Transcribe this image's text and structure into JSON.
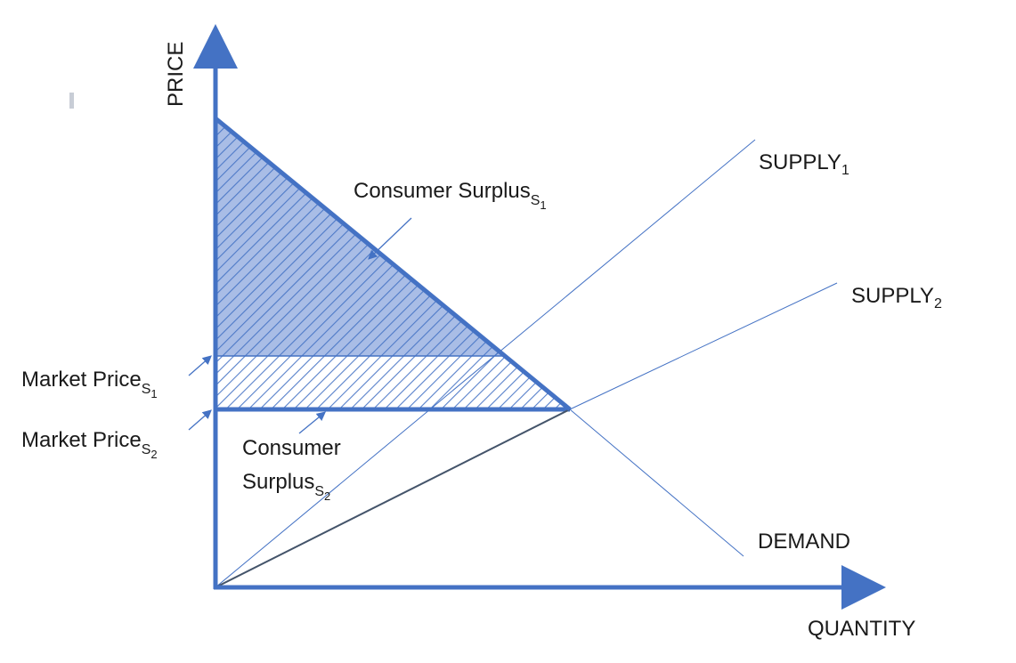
{
  "axes": {
    "y_label": "PRICE",
    "x_label": "QUANTITY"
  },
  "curves": {
    "supply1": {
      "label": "SUPPLY",
      "subscript": "1"
    },
    "supply2": {
      "label": "SUPPLY",
      "subscript": "2"
    },
    "demand": {
      "label": "DEMAND"
    }
  },
  "annotations": {
    "consumer_surplus_s1": {
      "text": "Consumer Surplus",
      "subscript": "S",
      "sub_subscript": "1"
    },
    "consumer_surplus_s2": {
      "line1": "Consumer",
      "line2": "Surplus",
      "subscript": "S",
      "sub_subscript": "2"
    },
    "market_price_s1": {
      "text": "Market Price",
      "subscript": "S",
      "sub_subscript": "1"
    },
    "market_price_s2": {
      "text": "Market Price",
      "subscript": "S",
      "sub_subscript": "2"
    }
  },
  "colors": {
    "axis": "#4472c4",
    "curve": "#4472c4",
    "surplus_fill": "#a9bde6",
    "hatch": "#4472c4",
    "supply2_line": "#44546a"
  }
}
